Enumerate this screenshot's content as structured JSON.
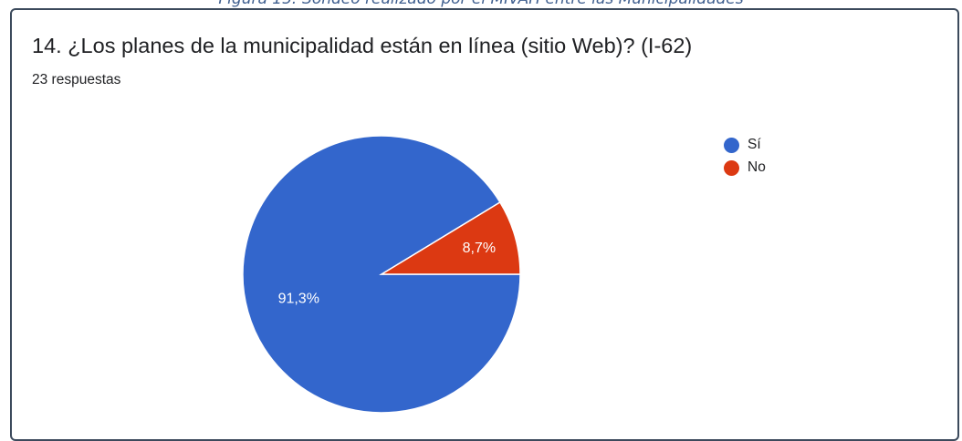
{
  "caption": "Figura 15: Sondeo realizado por el MIVAH entre las Municipalidades",
  "question": {
    "title": "14. ¿Los planes de la municipalidad están en línea (sitio Web)? (I-62)",
    "responses": "23 respuestas"
  },
  "chart_data": {
    "type": "pie",
    "title": "14. ¿Los planes de la municipalidad están en línea (sitio Web)? (I-62)",
    "subtitle": "23 respuestas",
    "categories": [
      "Sí",
      "No"
    ],
    "values": [
      91.3,
      8.7
    ],
    "labels": [
      "91,3%",
      "8,7%"
    ],
    "colors": [
      "#3366cc",
      "#dc3912"
    ],
    "legend_position": "top-right"
  }
}
